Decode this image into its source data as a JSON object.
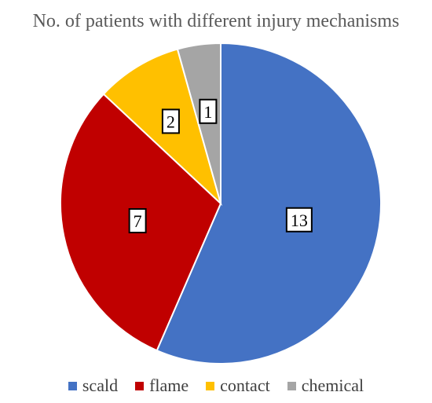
{
  "chart_data": {
    "type": "pie",
    "title": "No. of patients with different injury mechanisms",
    "categories": [
      "scald",
      "flame",
      "contact",
      "chemical"
    ],
    "values": [
      13,
      7,
      2,
      1
    ],
    "colors": [
      "#4472C4",
      "#C00000",
      "#FFC000",
      "#A5A5A5"
    ],
    "data_labels": [
      "13",
      "7",
      "2",
      "1"
    ],
    "legend_position": "bottom"
  }
}
